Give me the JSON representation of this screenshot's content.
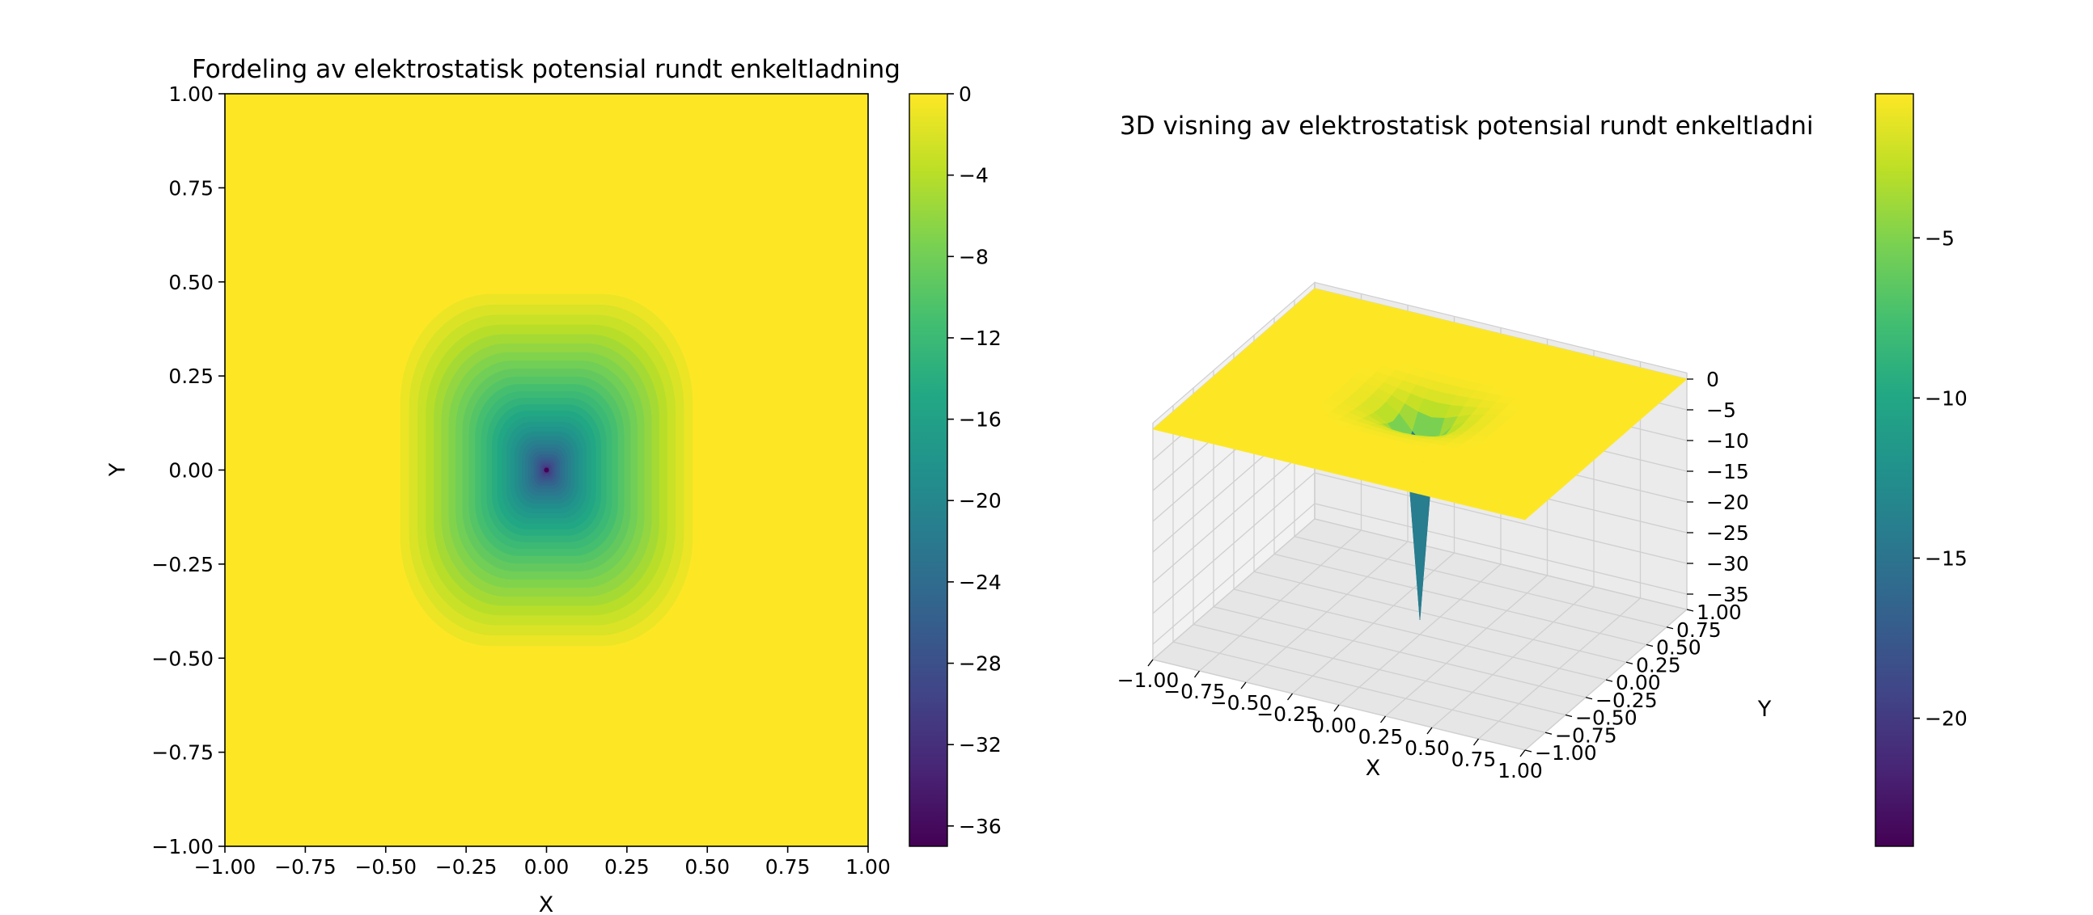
{
  "chart_data": [
    {
      "type": "heatmap",
      "title": "Fordeling av elektrostatisk potensial rundt enkeltladning",
      "xlabel": "X",
      "ylabel": "Y",
      "xlim": [
        -1.0,
        1.0
      ],
      "ylim": [
        -1.0,
        1.0
      ],
      "x_ticks": [
        "−1.00",
        "−0.75",
        "−0.50",
        "−0.25",
        "0.00",
        "0.25",
        "0.50",
        "0.75",
        "1.00"
      ],
      "y_ticks": [
        "−1.00",
        "−0.75",
        "−0.50",
        "−0.25",
        "0.00",
        "0.25",
        "0.50",
        "0.75",
        "1.00"
      ],
      "colormap": "viridis",
      "charge_position": [
        0.0,
        0.0
      ],
      "value_range": [
        -37,
        0
      ],
      "colorbar": {
        "range": [
          -37,
          0
        ],
        "ticks": [
          0,
          -4,
          -8,
          -12,
          -16,
          -20,
          -24,
          -28,
          -32,
          -36
        ],
        "tick_labels": [
          "0",
          "−4",
          "−8",
          "−12",
          "−16",
          "−20",
          "−24",
          "−28",
          "−32",
          "−36"
        ]
      }
    },
    {
      "type": "surface",
      "title": "3D visning av elektrostatisk potensial rundt enkeltladni",
      "xlabel": "X",
      "ylabel": "Y",
      "xlim": [
        -1.0,
        1.0
      ],
      "ylim": [
        -1.0,
        1.0
      ],
      "zlim": [
        -37,
        0
      ],
      "x_ticks": [
        "−1.00",
        "−0.75",
        "−0.50",
        "−0.25",
        "0.00",
        "0.25",
        "0.50",
        "0.75",
        "1.00"
      ],
      "y_ticks": [
        "−1.00",
        "−0.75",
        "−0.50",
        "−0.25",
        "0.00",
        "0.25",
        "0.50",
        "0.75",
        "1.00"
      ],
      "z_ticks": [
        "0",
        "−5",
        "−10",
        "−15",
        "−20",
        "−25",
        "−30",
        "−35"
      ],
      "colormap": "viridis",
      "colorbar": {
        "range": [
          -24,
          -0.5
        ],
        "ticks": [
          -5,
          -10,
          -15,
          -20
        ],
        "tick_labels": [
          "−5",
          "−10",
          "−15",
          "−20"
        ]
      }
    }
  ]
}
